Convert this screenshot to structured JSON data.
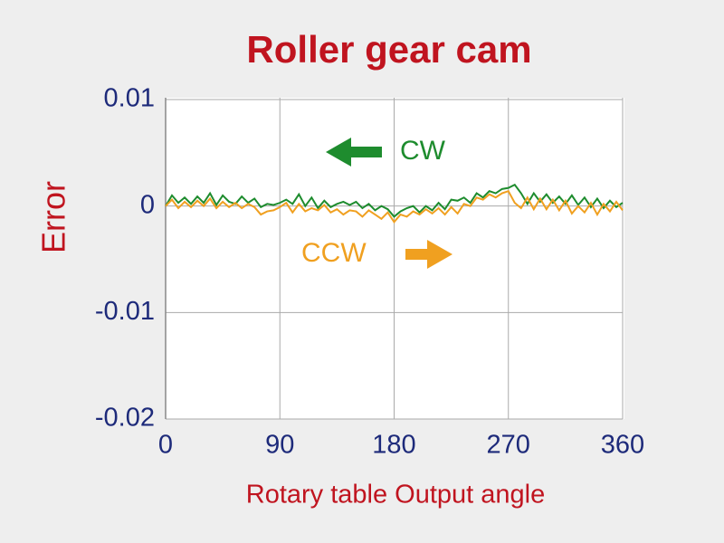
{
  "chart_data": {
    "type": "line",
    "title": "Roller gear cam",
    "x_label": "Rotary table Output angle",
    "y_label": "Error",
    "x": [
      0,
      5,
      10,
      15,
      20,
      25,
      30,
      35,
      40,
      45,
      50,
      55,
      60,
      65,
      70,
      75,
      80,
      85,
      90,
      95,
      100,
      105,
      110,
      115,
      120,
      125,
      130,
      135,
      140,
      145,
      150,
      155,
      160,
      165,
      170,
      175,
      180,
      185,
      190,
      195,
      200,
      205,
      210,
      215,
      220,
      225,
      230,
      235,
      240,
      245,
      250,
      255,
      260,
      265,
      270,
      275,
      280,
      285,
      290,
      295,
      300,
      305,
      310,
      315,
      320,
      325,
      330,
      335,
      340,
      345,
      350,
      355,
      360
    ],
    "series": [
      {
        "name": "CW",
        "color": "#1e8c2e",
        "values": [
          0,
          0.001,
          0.0003,
          0.0008,
          0.0002,
          0.0009,
          0.0003,
          0.0012,
          0.0001,
          0.001,
          0.0004,
          0.0002,
          0.0009,
          0.0003,
          0.0007,
          -0.0001,
          0.0002,
          0.0001,
          0.0003,
          0.0006,
          0.0002,
          0.0011,
          0,
          0.0008,
          -0.0002,
          0.0005,
          -0.0001,
          0.0002,
          0.0004,
          0.0001,
          0.0004,
          -0.0002,
          0.0002,
          -0.0004,
          0,
          -0.0003,
          -0.001,
          -0.0005,
          -0.0002,
          0,
          -0.0006,
          0,
          -0.0004,
          0.0003,
          -0.0003,
          0.0006,
          0.0005,
          0.0008,
          0.0003,
          0.0012,
          0.0008,
          0.0014,
          0.0012,
          0.0016,
          0.0017,
          0.002,
          0.0012,
          0.0002,
          0.0012,
          0.0004,
          0.0011,
          0.0003,
          0.0009,
          0.0002,
          0.001,
          0.0001,
          0.0008,
          -0.0001,
          0.0007,
          -0.0002,
          0.0005,
          -0.0001,
          0.0003
        ]
      },
      {
        "name": "CCW",
        "color": "#f0a020",
        "values": [
          0,
          0.0006,
          -0.0002,
          0.0004,
          -0.0001,
          0.0005,
          0,
          0.0007,
          -0.0002,
          0.0004,
          -0.0001,
          0.0003,
          -0.0002,
          0.0002,
          -0.0001,
          -0.0008,
          -0.0005,
          -0.0004,
          -0.0001,
          0.0003,
          -0.0006,
          0.0002,
          -0.0005,
          -0.0002,
          -0.0004,
          0.0001,
          -0.0006,
          -0.0003,
          -0.0008,
          -0.0004,
          -0.0005,
          -0.001,
          -0.0004,
          -0.0008,
          -0.0012,
          -0.0006,
          -0.0015,
          -0.0008,
          -0.001,
          -0.0005,
          -0.0008,
          -0.0003,
          -0.0007,
          -0.0002,
          -0.0008,
          -0.0001,
          -0.0007,
          0.0002,
          0,
          0.0008,
          0.0006,
          0.0011,
          0.0008,
          0.0012,
          0.0014,
          0.0003,
          -0.0002,
          0.0008,
          -0.0003,
          0.0007,
          -0.0003,
          0.0006,
          -0.0004,
          0.0005,
          -0.0007,
          0,
          -0.0006,
          0.0003,
          -0.0008,
          0.0002,
          -0.0005,
          0.0004,
          -0.0004
        ]
      }
    ],
    "xlim": [
      0,
      360
    ],
    "xticks": [
      0,
      90,
      180,
      270,
      360
    ],
    "ylim": [
      -0.02,
      0.01
    ],
    "yticks": [
      -0.02,
      -0.01,
      0,
      0.01
    ],
    "grid": true
  }
}
